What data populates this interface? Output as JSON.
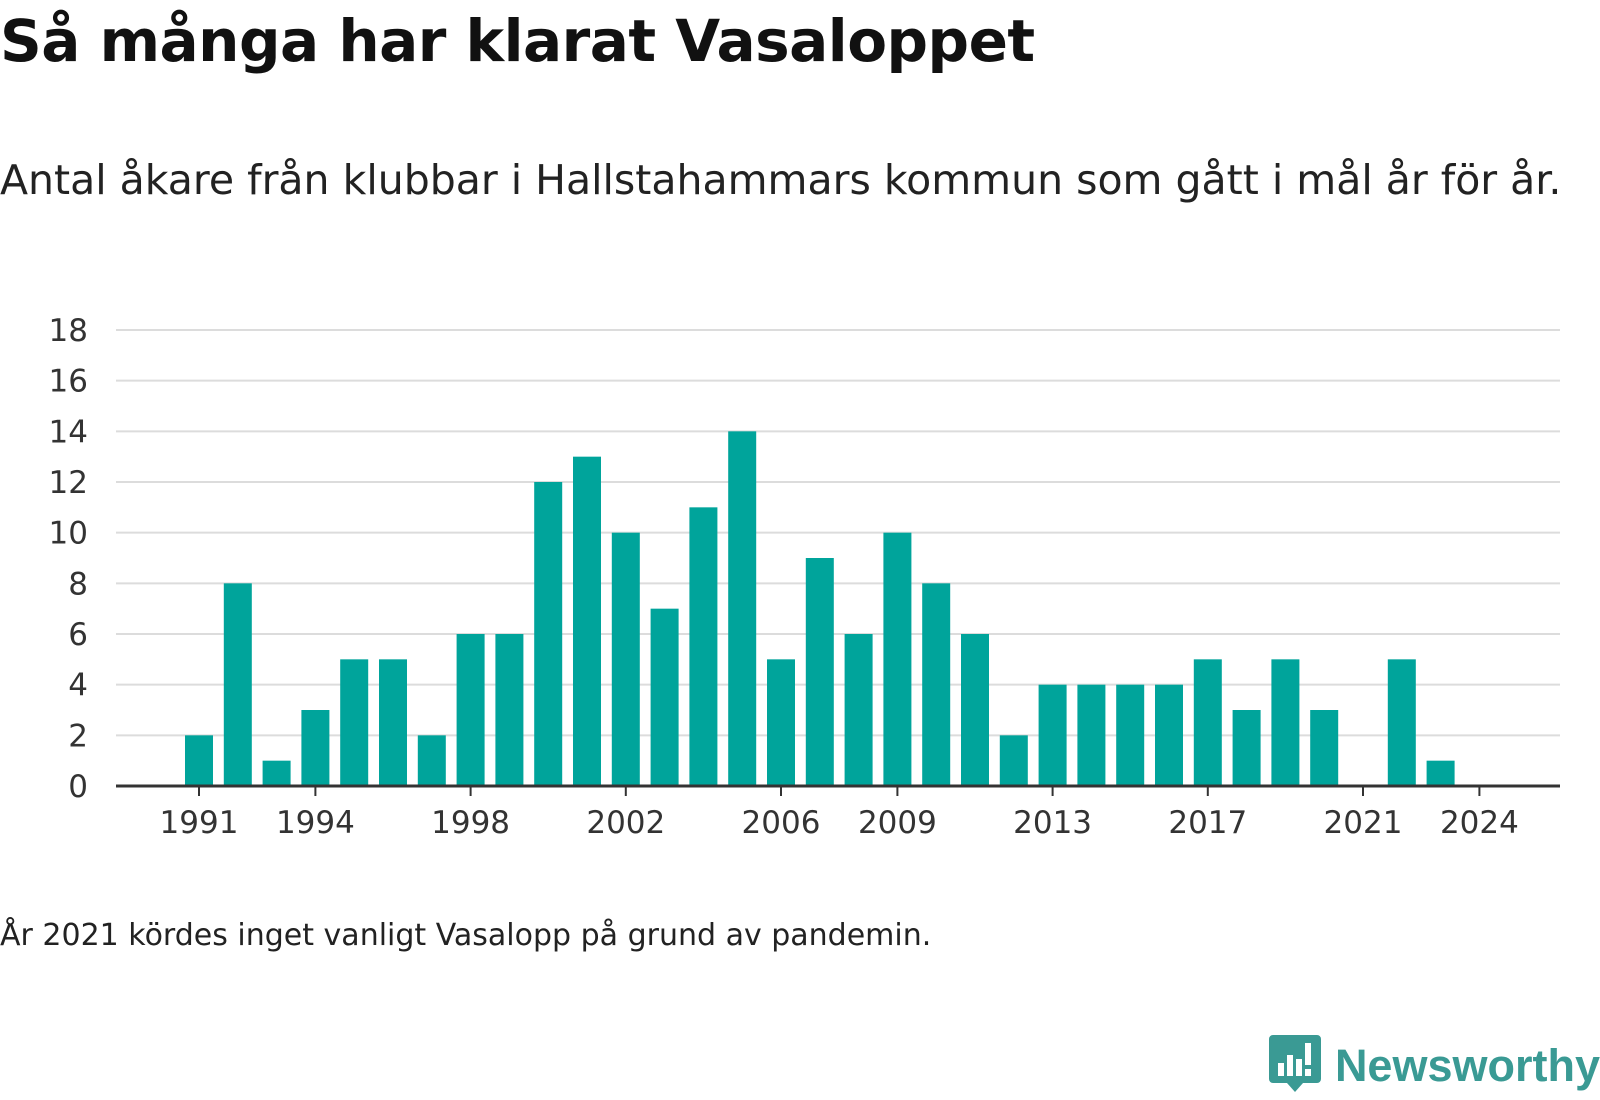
{
  "header": {
    "title": "Så många har klarat Vasaloppet",
    "subtitle": "Antal åkare från klubbar i Hallstahammars kommun som gått i mål år för år."
  },
  "footer": {
    "note": "År 2021 kördes inget vanligt Vasalopp på grund av pandemin."
  },
  "brand": {
    "name": "Newsworthy",
    "logo_icon": "bar-chart-speech-bubble-icon"
  },
  "colors": {
    "bar": "#00a49b",
    "grid": "#dcdcdc",
    "axis": "#333333",
    "brand": "#3a9a94"
  },
  "chart_data": {
    "type": "bar",
    "categories": [
      "1991",
      "1992",
      "1993",
      "1994",
      "1995",
      "1996",
      "1997",
      "1998",
      "1999",
      "2000",
      "2001",
      "2002",
      "2003",
      "2004",
      "2005",
      "2006",
      "2007",
      "2008",
      "2009",
      "2010",
      "2011",
      "2012",
      "2013",
      "2014",
      "2015",
      "2016",
      "2017",
      "2018",
      "2019",
      "2020",
      "2021",
      "2022",
      "2023",
      "2024"
    ],
    "values": [
      2,
      8,
      1,
      3,
      5,
      5,
      2,
      6,
      6,
      12,
      13,
      10,
      7,
      11,
      14,
      5,
      9,
      6,
      10,
      8,
      6,
      2,
      4,
      4,
      4,
      4,
      5,
      3,
      5,
      3,
      0,
      5,
      1,
      0
    ],
    "x_tick_labels": [
      "1991",
      "1994",
      "1998",
      "2002",
      "2006",
      "2009",
      "2013",
      "2017",
      "2021",
      "2024"
    ],
    "y_ticks": [
      0,
      2,
      4,
      6,
      8,
      10,
      12,
      14,
      16,
      18
    ],
    "ylim": [
      0,
      18
    ],
    "grid": true,
    "legend": "none"
  }
}
